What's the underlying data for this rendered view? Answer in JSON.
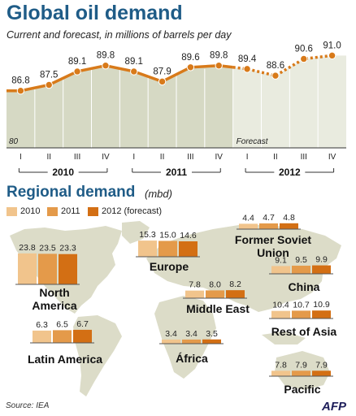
{
  "title": "Global oil demand",
  "subtitle": "Current and forecast, in millions of barrels per day",
  "regional_title": "Regional demand",
  "regional_unit": "(mbd)",
  "source": "Source: IEA",
  "logo_text": "AFP",
  "colors": {
    "title": "#1f5c87",
    "line": "#d87a1a",
    "area_actual": "#d6d9c4",
    "area_forecast": "#e9ebdf",
    "map": "#dcdcc8",
    "bar_2010": "#f1c48c",
    "bar_2011": "#e49a4a",
    "bar_2012": "#d36f14"
  },
  "chart_data": [
    {
      "type": "area",
      "title": "Global oil demand",
      "subtitle": "Current and forecast, in millions of barrels per day",
      "ylim": [
        80,
        92
      ],
      "baseline_label": "80",
      "forecast_label": "Forecast",
      "forecast_from_index": 8,
      "x": [
        "I",
        "II",
        "III",
        "IV",
        "I",
        "II",
        "III",
        "IV",
        "I",
        "II",
        "III",
        "IV"
      ],
      "years": [
        {
          "label": "2010",
          "start": 0,
          "end": 3
        },
        {
          "label": "2011",
          "start": 4,
          "end": 7
        },
        {
          "label": "2012",
          "start": 8,
          "end": 11
        }
      ],
      "values": [
        86.8,
        87.5,
        89.1,
        89.8,
        89.1,
        87.9,
        89.6,
        89.8,
        89.4,
        88.6,
        90.6,
        91.0
      ],
      "value_labels": [
        "86.8",
        "87.5",
        "89.1",
        "89.8",
        "89.1",
        "87.9",
        "89.6",
        "89.8",
        "89.4",
        "88.6",
        "90.6",
        "91.0"
      ]
    },
    {
      "type": "bar",
      "title": "Regional demand",
      "unit": "(mbd)",
      "legend": [
        "2010",
        "2011",
        "2012 (forecast)"
      ],
      "regions": [
        {
          "name": "North America",
          "name_lines": [
            "North",
            "America"
          ],
          "values": [
            23.8,
            23.5,
            23.3
          ],
          "labels": [
            "23.8",
            "23.5",
            "23.3"
          ]
        },
        {
          "name": "Latin America",
          "name_lines": [
            "Latin America"
          ],
          "values": [
            6.3,
            6.5,
            6.7
          ],
          "labels": [
            "6.3",
            "6.5",
            "6.7"
          ]
        },
        {
          "name": "Europe",
          "name_lines": [
            "Europe"
          ],
          "values": [
            15.3,
            15.0,
            14.6
          ],
          "labels": [
            "15.3",
            "15.0",
            "14.6"
          ]
        },
        {
          "name": "Former Soviet Union",
          "name_lines": [
            "Former Soviet",
            "Union"
          ],
          "values": [
            4.4,
            4.7,
            4.8
          ],
          "labels": [
            "4.4",
            "4.7",
            "4.8"
          ]
        },
        {
          "name": "Middle East",
          "name_lines": [
            "Middle East"
          ],
          "values": [
            7.8,
            8.0,
            8.2
          ],
          "labels": [
            "7.8",
            "8.0",
            "8.2"
          ]
        },
        {
          "name": "China",
          "name_lines": [
            "China"
          ],
          "values": [
            9.1,
            9.5,
            9.9
          ],
          "labels": [
            "9.1",
            "9.5",
            "9.9"
          ]
        },
        {
          "name": "África",
          "name_lines": [
            "África"
          ],
          "values": [
            3.4,
            3.4,
            3.5
          ],
          "labels": [
            "3.4",
            "3.4",
            "3.5"
          ]
        },
        {
          "name": "Rest of Asia",
          "name_lines": [
            "Rest of Asia"
          ],
          "values": [
            10.4,
            10.7,
            10.9
          ],
          "labels": [
            "10.4",
            "10.7",
            "10.9"
          ]
        },
        {
          "name": "Pacific",
          "name_lines": [
            "Pacific"
          ],
          "values": [
            7.8,
            7.9,
            7.9
          ],
          "labels": [
            "7.8",
            "7.9",
            "7.9"
          ]
        }
      ]
    }
  ]
}
